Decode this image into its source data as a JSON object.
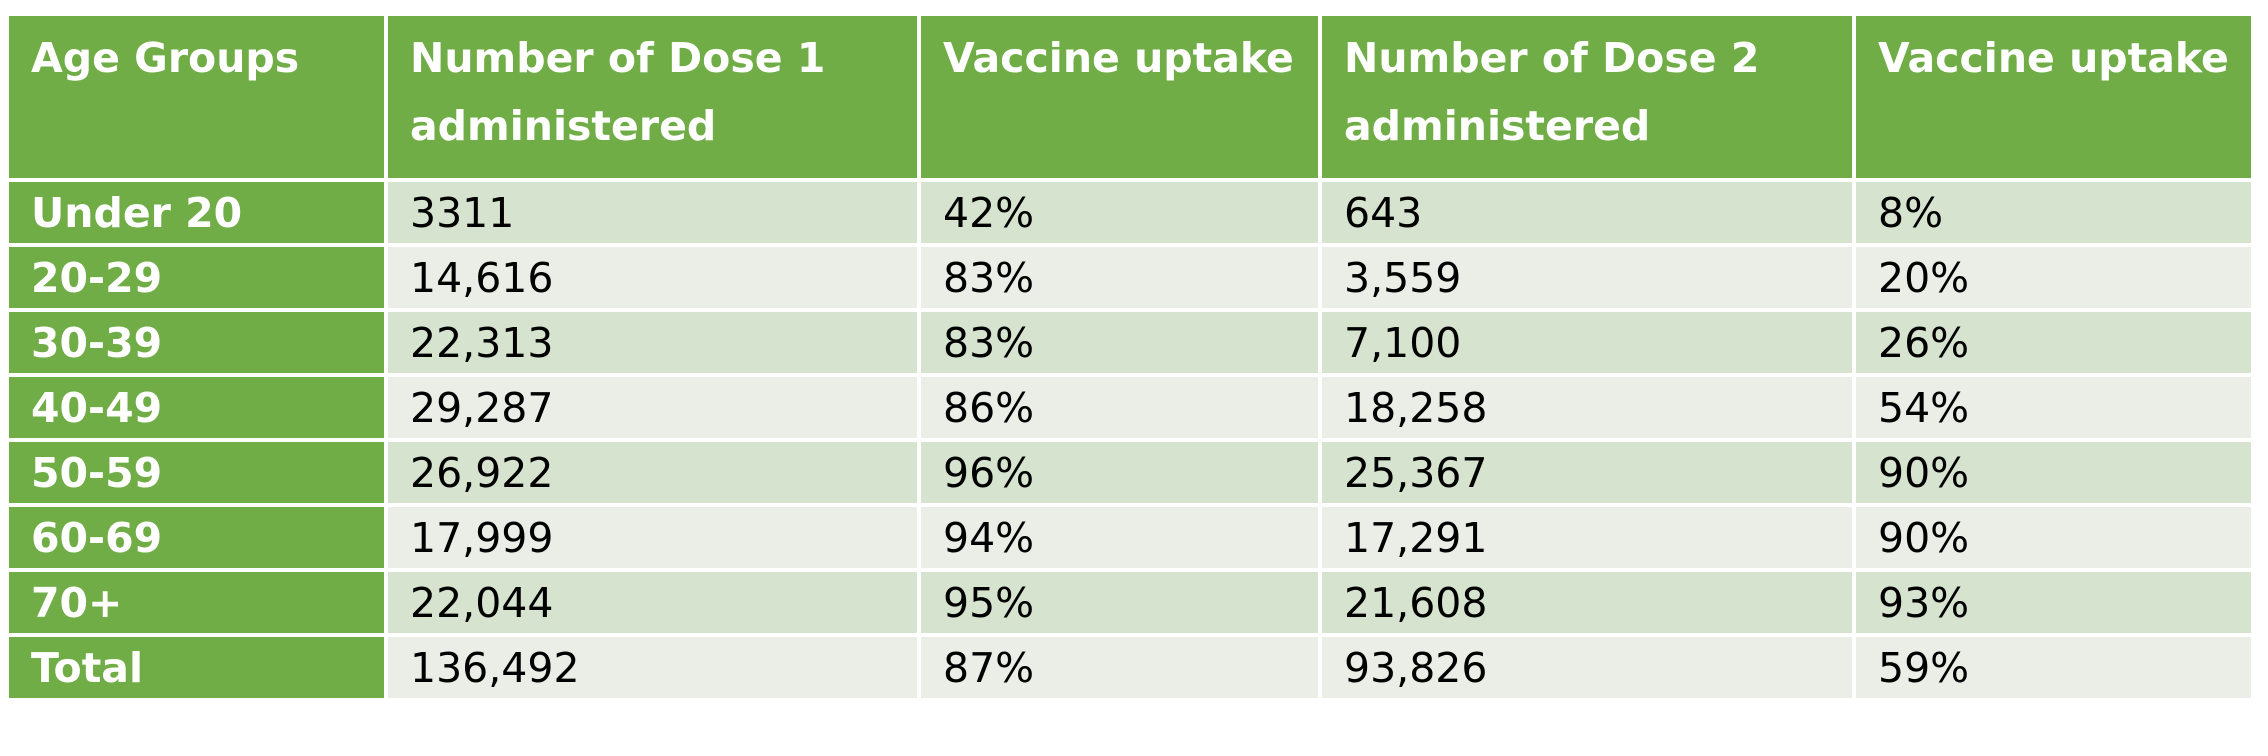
{
  "table": {
    "headers": [
      "Age Groups",
      "Number of Dose 1 administered",
      "Vaccine uptake",
      "Number of Dose 2 administered",
      "Vaccine uptake"
    ],
    "rows": [
      [
        "Under 20",
        "3311",
        "42%",
        "643",
        "8%"
      ],
      [
        "20-29",
        "14,616",
        "83%",
        "3,559",
        "20%"
      ],
      [
        "30-39",
        "22,313",
        "83%",
        "7,100",
        "26%"
      ],
      [
        "40-49",
        "29,287",
        "86%",
        "18,258",
        "54%"
      ],
      [
        "50-59",
        "26,922",
        "96%",
        "25,367",
        "90%"
      ],
      [
        "60-69",
        "17,999",
        "94%",
        "17,291",
        "90%"
      ],
      [
        "70+",
        "22,044",
        "95%",
        "21,608",
        "93%"
      ],
      [
        "Total",
        "136,492",
        "87%",
        "93,826",
        "59%"
      ]
    ]
  },
  "colors": {
    "header_green": "#70ad47",
    "row_dark": "#d5e3cf",
    "row_light": "#eaeee7"
  }
}
